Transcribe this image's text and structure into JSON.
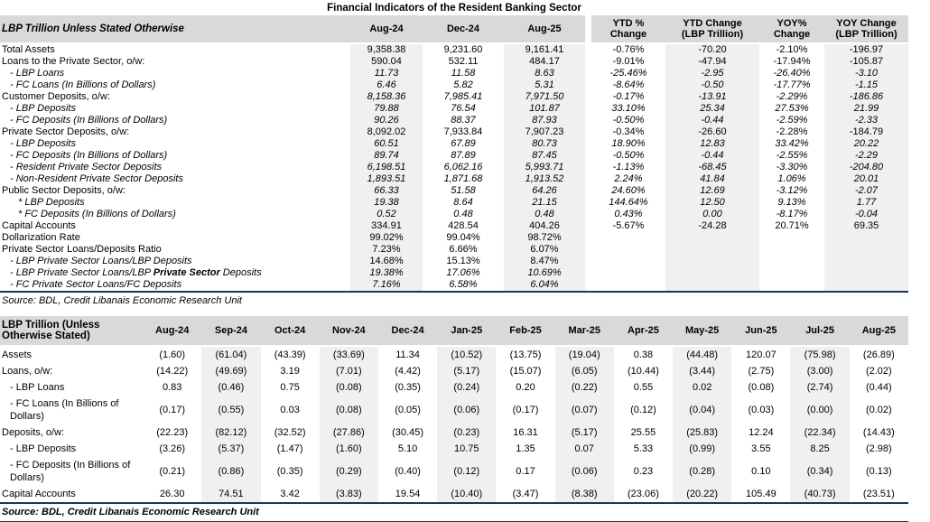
{
  "title": "Financial Indicators of the Resident Banking Sector",
  "colors": {
    "header_bg": "#d9d9d9",
    "column_shade": "#f0f0f0",
    "rule": "#17375e"
  },
  "table1": {
    "header_label": "LBP Trillion Unless Stated Otherwise",
    "columns": [
      "Aug-24",
      "Dec-24",
      "Aug-25",
      "YTD %\nChange",
      "YTD Change\n(LBP Trillion)",
      "YOY%\nChange",
      "YOY Change\n(LBP Trillion)"
    ],
    "rows": [
      {
        "label": "Total Assets",
        "indent": 0,
        "values": [
          "9,358.38",
          "9,231.60",
          "9,161.41",
          "-0.76%",
          "-70.20",
          "-2.10%",
          "-196.97"
        ]
      },
      {
        "label": "Loans to the Private Sector, o/w:",
        "indent": 0,
        "values": [
          "590.04",
          "532.11",
          "484.17",
          "-9.01%",
          "-47.94",
          "-17.94%",
          "-105.87"
        ]
      },
      {
        "label": "- LBP Loans",
        "indent": 1,
        "label_italic": true,
        "values_italic": true,
        "values": [
          "11.73",
          "11.58",
          "8.63",
          "-25.46%",
          "-2.95",
          "-26.40%",
          "-3.10"
        ]
      },
      {
        "label": "- FC Loans (In Billions of Dollars)",
        "indent": 1,
        "label_italic": true,
        "values_italic": true,
        "values": [
          "6.46",
          "5.82",
          "5.31",
          "-8.64%",
          "-0.50",
          "-17.77%",
          "-1.15"
        ]
      },
      {
        "label": "Customer Deposits, o/w:",
        "indent": 0,
        "values_italic": true,
        "values": [
          "8,158.36",
          "7,985.41",
          "7,971.50",
          "-0.17%",
          "-13.91",
          "-2.29%",
          "-186.86"
        ]
      },
      {
        "label": "- LBP Deposits",
        "indent": 1,
        "label_italic": true,
        "values_italic": true,
        "values": [
          "79.88",
          "76.54",
          "101.87",
          "33.10%",
          "25.34",
          "27.53%",
          "21.99"
        ]
      },
      {
        "label": "- FC Deposits (In Billions of Dollars)",
        "indent": 1,
        "label_italic": true,
        "values_italic": true,
        "values": [
          "90.26",
          "88.37",
          "87.93",
          "-0.50%",
          "-0.44",
          "-2.59%",
          "-2.33"
        ]
      },
      {
        "label": "Private Sector Deposits, o/w:",
        "indent": 0,
        "values": [
          "8,092.02",
          "7,933.84",
          "7,907.23",
          "-0.34%",
          "-26.60",
          "-2.28%",
          "-184.79"
        ]
      },
      {
        "label": "- LBP Deposits",
        "indent": 1,
        "label_italic": true,
        "values_italic": true,
        "values": [
          "60.51",
          "67.89",
          "80.73",
          "18.90%",
          "12.83",
          "33.42%",
          "20.22"
        ]
      },
      {
        "label": "- FC Deposits (In Billions of Dollars)",
        "indent": 1,
        "label_italic": true,
        "values_italic": true,
        "values": [
          "89.74",
          "87.89",
          "87.45",
          "-0.50%",
          "-0.44",
          "-2.55%",
          "-2.29"
        ]
      },
      {
        "label": "- Resident Private Sector Deposits",
        "indent": 1,
        "label_italic": true,
        "values_italic": true,
        "values": [
          "6,198.51",
          "6,062.16",
          "5,993.71",
          "-1.13%",
          "-68.45",
          "-3.30%",
          "-204.80"
        ]
      },
      {
        "label": "- Non-Resident Private Sector Deposits",
        "indent": 1,
        "label_italic": true,
        "values_italic": true,
        "values": [
          "1,893.51",
          "1,871.68",
          "1,913.52",
          "2.24%",
          "41.84",
          "1.06%",
          "20.01"
        ]
      },
      {
        "label": "Public Sector Deposits, o/w:",
        "indent": 0,
        "values_italic": true,
        "values": [
          "66.33",
          "51.58",
          "64.26",
          "24.60%",
          "12.69",
          "-3.12%",
          "-2.07"
        ]
      },
      {
        "label": "* LBP Deposits",
        "indent": 2,
        "label_italic": true,
        "values_italic": true,
        "values": [
          "19.38",
          "8.64",
          "21.15",
          "144.64%",
          "12.50",
          "9.13%",
          "1.77"
        ]
      },
      {
        "label": "* FC Deposits (In Billions of Dollars)",
        "indent": 2,
        "label_italic": true,
        "values_italic": true,
        "values": [
          "0.52",
          "0.48",
          "0.48",
          "0.43%",
          "0.00",
          "-8.17%",
          "-0.04"
        ]
      },
      {
        "label": "Capital Accounts",
        "indent": 0,
        "values": [
          "334.91",
          "428.54",
          "404.26",
          "-5.67%",
          "-24.28",
          "20.71%",
          "69.35"
        ]
      },
      {
        "label": "Dollarization Rate",
        "indent": 0,
        "values": [
          "99.02%",
          "99.04%",
          "98.72%",
          "",
          "",
          "",
          ""
        ]
      },
      {
        "label": "Private Sector Loans/Deposits Ratio",
        "indent": 0,
        "values": [
          "7.23%",
          "6.66%",
          "6.07%",
          "",
          "",
          "",
          ""
        ]
      },
      {
        "label": "- LBP Private Sector Loans/LBP Deposits",
        "indent": 1,
        "label_italic": true,
        "values": [
          "14.68%",
          "15.13%",
          "8.47%",
          "",
          "",
          "",
          ""
        ]
      },
      {
        "label_pre": "- LBP Private Sector Loans/LBP ",
        "label_bold": "Private Sector",
        "label_post": " Deposits",
        "indent": 1,
        "label_italic": true,
        "values_italic": true,
        "values": [
          "19.38%",
          "17.06%",
          "10.69%",
          "",
          "",
          "",
          ""
        ]
      },
      {
        "label": "- FC Private Sector Loans/FC Deposits",
        "indent": 1,
        "label_italic": true,
        "values_italic": true,
        "values": [
          "7.16%",
          "6.58%",
          "6.04%",
          "",
          "",
          "",
          ""
        ]
      }
    ],
    "source": "Source: BDL, Credit Libanais Economic Research Unit"
  },
  "table2": {
    "header_label": "LBP Trillion (Unless Otherwise Stated)",
    "columns": [
      "Aug-24",
      "Sep-24",
      "Oct-24",
      "Nov-24",
      "Dec-24",
      "Jan-25",
      "Feb-25",
      "Mar-25",
      "Apr-25",
      "May-25",
      "Jun-25",
      "Jul-25",
      "Aug-25"
    ],
    "rows": [
      {
        "label": "Assets",
        "indent": 0,
        "values": [
          "(1.60)",
          "(61.04)",
          "(43.39)",
          "(33.69)",
          "11.34",
          "(10.52)",
          "(13.75)",
          "(19.04)",
          "0.38",
          "(44.48)",
          "120.07",
          "(75.98)",
          "(26.89)"
        ]
      },
      {
        "label": "Loans, o/w:",
        "indent": 0,
        "values": [
          "(14.22)",
          "(49.69)",
          "3.19",
          "(7.01)",
          "(4.42)",
          "(5.17)",
          "(15.07)",
          "(6.05)",
          "(10.44)",
          "(3.44)",
          "(2.75)",
          "(3.00)",
          "(2.02)"
        ]
      },
      {
        "label": "- LBP Loans",
        "indent": 1,
        "values": [
          "0.83",
          "(0.46)",
          "0.75",
          "(0.08)",
          "(0.35)",
          "(0.24)",
          "0.20",
          "(0.22)",
          "0.55",
          "0.02",
          "(0.08)",
          "(2.74)",
          "(0.44)"
        ]
      },
      {
        "label": "- FC Loans (In Billions of Dollars)",
        "indent": 1,
        "values": [
          "(0.17)",
          "(0.55)",
          "0.03",
          "(0.08)",
          "(0.05)",
          "(0.06)",
          "(0.17)",
          "(0.07)",
          "(0.12)",
          "(0.04)",
          "(0.03)",
          "(0.00)",
          "(0.02)"
        ]
      },
      {
        "label": "Deposits, o/w:",
        "indent": 0,
        "values": [
          "(22.23)",
          "(82.12)",
          "(32.52)",
          "(27.86)",
          "(30.45)",
          "(0.23)",
          "16.31",
          "(5.17)",
          "25.55",
          "(25.83)",
          "12.24",
          "(22.34)",
          "(14.43)"
        ]
      },
      {
        "label": "- LBP Deposits",
        "indent": 1,
        "values": [
          "(3.26)",
          "(5.37)",
          "(1.47)",
          "(1.60)",
          "5.10",
          "10.75",
          "1.35",
          "0.07",
          "5.33",
          "(0.99)",
          "3.55",
          "8.25",
          "(2.98)"
        ]
      },
      {
        "label": "- FC Deposits (In Billions of Dollars)",
        "indent": 1,
        "values": [
          "(0.21)",
          "(0.86)",
          "(0.35)",
          "(0.29)",
          "(0.40)",
          "(0.12)",
          "0.17",
          "(0.06)",
          "0.23",
          "(0.28)",
          "0.10",
          "(0.34)",
          "(0.13)"
        ]
      },
      {
        "label": "Capital Accounts",
        "indent": 0,
        "values": [
          "26.30",
          "74.51",
          "3.42",
          "(3.83)",
          "19.54",
          "(10.40)",
          "(3.47)",
          "(8.38)",
          "(23.06)",
          "(20.22)",
          "105.49",
          "(40.73)",
          "(23.51)"
        ]
      }
    ],
    "source": "Source: BDL, Credit Libanais Economic Research Unit"
  }
}
